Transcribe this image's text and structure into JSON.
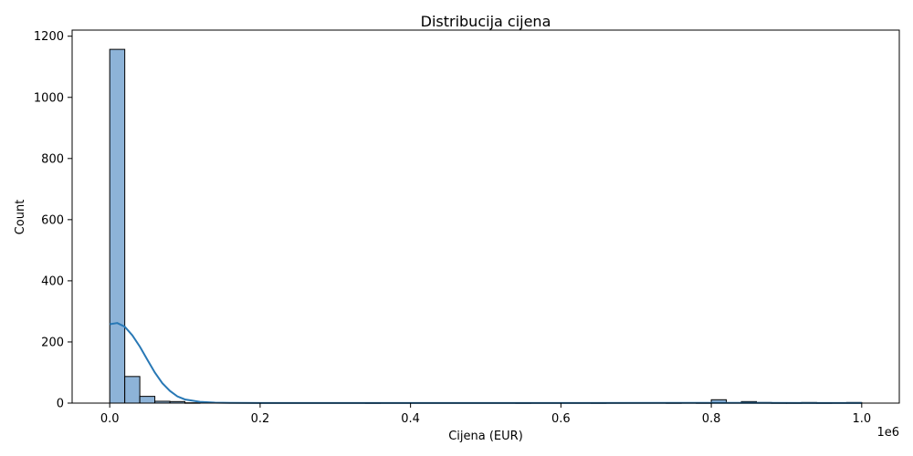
{
  "chart_data": {
    "type": "bar",
    "subtype": "histogram-with-kde",
    "title": "Distribucija cijena",
    "xlabel": "Cijena (EUR)",
    "ylabel": "Count",
    "x_offset_label": "1e6",
    "xlim": [
      -50000,
      1050000
    ],
    "ylim": [
      0,
      1220
    ],
    "x_ticks": [
      0,
      0.2,
      0.4,
      0.6,
      0.8,
      1.0
    ],
    "x_tick_labels": [
      "0.0",
      "0.2",
      "0.4",
      "0.6",
      "0.8",
      "1.0"
    ],
    "y_ticks": [
      0,
      200,
      400,
      600,
      800,
      1000,
      1200
    ],
    "y_tick_labels": [
      "0",
      "200",
      "400",
      "600",
      "800",
      "1000",
      "1200"
    ],
    "grid": false,
    "legend": "none",
    "bin_width": 20000,
    "bin_start": 0,
    "counts": [
      1157,
      87,
      22,
      6,
      5,
      1,
      0,
      0,
      0,
      0,
      0,
      0,
      0,
      0,
      0,
      0,
      0,
      1,
      0,
      0,
      0,
      0,
      0,
      0,
      0,
      0,
      0,
      1,
      0,
      0,
      0,
      0,
      1,
      0,
      0,
      0,
      0,
      1,
      0,
      1,
      11,
      0,
      5,
      2,
      1,
      1,
      2,
      1,
      0,
      2
    ],
    "kde": {
      "x": [
        0,
        10000,
        20000,
        30000,
        40000,
        50000,
        60000,
        70000,
        80000,
        90000,
        100000,
        120000,
        140000,
        160000,
        200000,
        400000,
        600000,
        800000,
        850000,
        1000000
      ],
      "y": [
        258,
        262,
        250,
        222,
        185,
        142,
        100,
        65,
        40,
        22,
        12,
        4,
        1.5,
        0.8,
        0.4,
        0.3,
        0.3,
        0.6,
        0.6,
        0.3
      ]
    },
    "colors": {
      "bar_fill": "#8db3d8",
      "bar_edge": "#000000",
      "kde_line": "#2878b5"
    }
  }
}
